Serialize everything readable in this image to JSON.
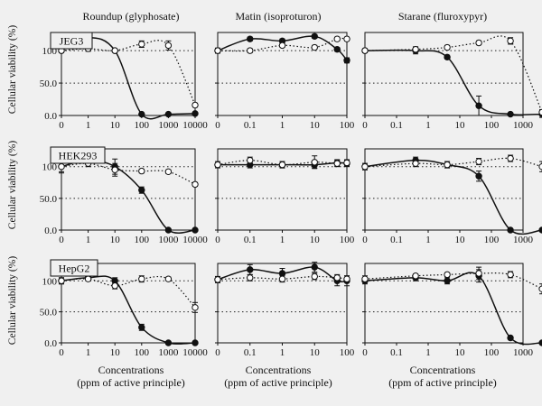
{
  "figure": {
    "ylabel": "Cellular viability (%)",
    "xlabel_line1": "Concentrations",
    "xlabel_line2": "(ppm of active principle)",
    "columns": [
      "Roundup (glyphosate)",
      "Matin (isoproturon)",
      "Starane (fluroxypyr)"
    ],
    "rows": [
      "JEG3",
      "HEK293",
      "HepG2"
    ]
  },
  "chart_data": [
    {
      "type": "line",
      "row": "JEG3",
      "col": "Roundup (glyphosate)",
      "xscale": "log",
      "xticks": [
        "0",
        "1",
        "10",
        "100",
        "1000",
        "10000"
      ],
      "yticks": [
        "0.0",
        "50.0",
        "100"
      ],
      "ylim": [
        0,
        128
      ],
      "ref_lines": [
        100,
        50
      ],
      "series": [
        {
          "name": "filled",
          "x": [
            0,
            1,
            10,
            100,
            1000,
            10000
          ],
          "y": [
            100,
            120,
            100,
            2,
            2,
            3
          ],
          "err": [
            3,
            7,
            2,
            1,
            1,
            1
          ]
        },
        {
          "name": "open",
          "x": [
            0,
            1,
            10,
            100,
            1000,
            10000
          ],
          "y": [
            100,
            103,
            100,
            110,
            108,
            16
          ],
          "err": [
            3,
            4,
            2,
            5,
            7,
            3
          ]
        }
      ]
    },
    {
      "type": "line",
      "row": "JEG3",
      "col": "Matin (isoproturon)",
      "xscale": "log",
      "xticks": [
        "0",
        "0.1",
        "1",
        "10",
        "100"
      ],
      "yticks": [
        "0.0",
        "50.0",
        "100"
      ],
      "ylim": [
        0,
        128
      ],
      "ref_lines": [
        100,
        50
      ],
      "series": [
        {
          "name": "filled",
          "x": [
            0,
            0.1,
            1,
            10,
            50,
            100
          ],
          "y": [
            100,
            118,
            115,
            122,
            102,
            85
          ],
          "err": [
            4,
            3,
            3,
            3,
            3,
            4
          ]
        },
        {
          "name": "open",
          "x": [
            0,
            0.1,
            1,
            10,
            50,
            100
          ],
          "y": [
            100,
            100,
            108,
            105,
            118,
            118
          ],
          "err": [
            3,
            3,
            3,
            3,
            3,
            3
          ]
        }
      ]
    },
    {
      "type": "line",
      "row": "JEG3",
      "col": "Starane (fluroxypyr)",
      "xscale": "log",
      "xticks": [
        "0",
        "0.1",
        "1",
        "10",
        "100",
        "1000"
      ],
      "yticks": [
        "0.0",
        "50.0",
        "100"
      ],
      "ylim": [
        0,
        128
      ],
      "ref_lines": [
        100,
        50
      ],
      "series": [
        {
          "name": "filled",
          "x": [
            0,
            0.4,
            4,
            40,
            400,
            4000
          ],
          "y": [
            100,
            100,
            90,
            15,
            2,
            2
          ],
          "err": [
            3,
            5,
            3,
            15,
            1,
            5
          ]
        },
        {
          "name": "open",
          "x": [
            0,
            0.4,
            4,
            40,
            400,
            4000
          ],
          "y": [
            100,
            102,
            105,
            112,
            115,
            5
          ],
          "err": [
            3,
            4,
            3,
            3,
            5,
            4
          ]
        }
      ]
    },
    {
      "type": "line",
      "row": "HEK293",
      "col": "Roundup (glyphosate)",
      "xscale": "log",
      "xticks": [
        "0",
        "1",
        "10",
        "100",
        "1000",
        "10000"
      ],
      "yticks": [
        "0.0",
        "50.0",
        "100"
      ],
      "ylim": [
        0,
        128
      ],
      "ref_lines": [
        100,
        50
      ],
      "series": [
        {
          "name": "filled",
          "x": [
            0,
            1,
            10,
            100,
            1000,
            10000
          ],
          "y": [
            100,
            110,
            100,
            63,
            0,
            0
          ],
          "err": [
            10,
            5,
            12,
            5,
            1,
            1
          ]
        },
        {
          "name": "open",
          "x": [
            0,
            1,
            10,
            100,
            1000,
            10000
          ],
          "y": [
            100,
            105,
            95,
            93,
            92,
            72
          ],
          "err": [
            8,
            5,
            10,
            3,
            3,
            3
          ]
        }
      ]
    },
    {
      "type": "line",
      "row": "HEK293",
      "col": "Matin (isoproturon)",
      "xscale": "log",
      "xticks": [
        "0",
        "0.1",
        "1",
        "10",
        "100"
      ],
      "yticks": [
        "0.0",
        "50.0",
        "100"
      ],
      "ylim": [
        0,
        128
      ],
      "ref_lines": [
        100,
        50
      ],
      "series": [
        {
          "name": "filled",
          "x": [
            0,
            0.1,
            1,
            10,
            50,
            100
          ],
          "y": [
            103,
            103,
            103,
            103,
            106,
            105
          ],
          "err": [
            3,
            5,
            5,
            5,
            5,
            5
          ]
        },
        {
          "name": "open",
          "x": [
            0,
            0.1,
            1,
            10,
            50,
            100
          ],
          "y": [
            103,
            110,
            103,
            107,
            105,
            106
          ],
          "err": [
            5,
            5,
            5,
            10,
            5,
            5
          ]
        }
      ]
    },
    {
      "type": "line",
      "row": "HEK293",
      "col": "Starane (fluroxypyr)",
      "xscale": "log",
      "xticks": [
        "0",
        "0.1",
        "1",
        "10",
        "100",
        "1000"
      ],
      "yticks": [
        "0.0",
        "50.0",
        "100"
      ],
      "ylim": [
        0,
        128
      ],
      "ref_lines": [
        100,
        50
      ],
      "series": [
        {
          "name": "filled",
          "x": [
            0,
            0.4,
            4,
            40,
            400,
            4000
          ],
          "y": [
            100,
            110,
            103,
            85,
            0,
            0
          ],
          "err": [
            5,
            5,
            5,
            8,
            1,
            1
          ]
        },
        {
          "name": "open",
          "x": [
            0,
            0.4,
            4,
            40,
            400,
            4000
          ],
          "y": [
            100,
            105,
            103,
            108,
            113,
            100
          ],
          "err": [
            5,
            5,
            5,
            5,
            5,
            8
          ]
        }
      ]
    },
    {
      "type": "line",
      "row": "HepG2",
      "col": "Roundup (glyphosate)",
      "xscale": "log",
      "xticks": [
        "0",
        "1",
        "10",
        "100",
        "1000",
        "10000"
      ],
      "yticks": [
        "0.0",
        "50.0",
        "100"
      ],
      "ylim": [
        0,
        128
      ],
      "ref_lines": [
        100,
        50
      ],
      "series": [
        {
          "name": "filled",
          "x": [
            0,
            1,
            10,
            100,
            1000,
            10000
          ],
          "y": [
            100,
            105,
            100,
            25,
            0,
            0
          ],
          "err": [
            5,
            5,
            5,
            5,
            1,
            1
          ]
        },
        {
          "name": "open",
          "x": [
            0,
            1,
            10,
            100,
            1000,
            10000
          ],
          "y": [
            100,
            103,
            92,
            103,
            103,
            57
          ],
          "err": [
            5,
            3,
            5,
            5,
            3,
            8
          ]
        }
      ]
    },
    {
      "type": "line",
      "row": "HepG2",
      "col": "Matin (isoproturon)",
      "xscale": "log",
      "xticks": [
        "0",
        "0.1",
        "1",
        "10",
        "100"
      ],
      "yticks": [
        "0.0",
        "50.0",
        "100"
      ],
      "ylim": [
        0,
        128
      ],
      "ref_lines": [
        100,
        50
      ],
      "series": [
        {
          "name": "filled",
          "x": [
            0,
            0.1,
            1,
            10,
            50,
            100
          ],
          "y": [
            102,
            118,
            112,
            122,
            100,
            100
          ],
          "err": [
            5,
            8,
            8,
            8,
            8,
            8
          ]
        },
        {
          "name": "open",
          "x": [
            0,
            0.1,
            1,
            10,
            50,
            100
          ],
          "y": [
            102,
            105,
            103,
            107,
            105,
            103
          ],
          "err": [
            5,
            5,
            5,
            5,
            5,
            5
          ]
        }
      ]
    },
    {
      "type": "line",
      "row": "HepG2",
      "col": "Starane (fluroxypyr)",
      "xscale": "log",
      "xticks": [
        "0",
        "0.1",
        "1",
        "10",
        "100",
        "1000"
      ],
      "yticks": [
        "0.0",
        "50.0",
        "100"
      ],
      "ylim": [
        0,
        128
      ],
      "ref_lines": [
        100,
        50
      ],
      "series": [
        {
          "name": "filled",
          "x": [
            0,
            0.4,
            4,
            40,
            400,
            4000
          ],
          "y": [
            100,
            105,
            100,
            108,
            8,
            0
          ],
          "err": [
            5,
            5,
            5,
            10,
            2,
            1
          ]
        },
        {
          "name": "open",
          "x": [
            0,
            0.4,
            4,
            40,
            400,
            4000
          ],
          "y": [
            103,
            108,
            110,
            112,
            110,
            87
          ],
          "err": [
            5,
            3,
            3,
            10,
            5,
            8
          ]
        }
      ]
    }
  ]
}
